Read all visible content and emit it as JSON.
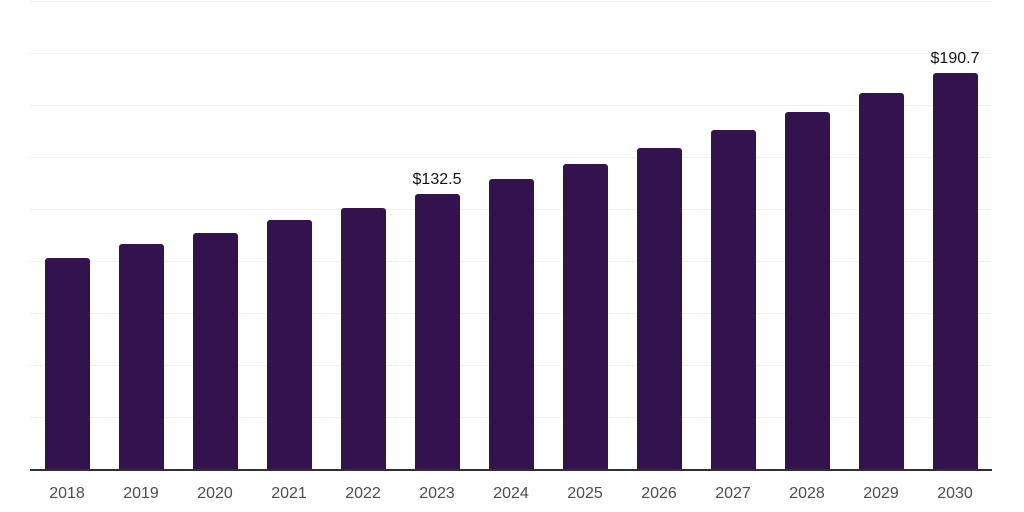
{
  "page": {
    "background_color": "#ffffff"
  },
  "chart_data": {
    "type": "bar",
    "title": "",
    "xlabel": "",
    "ylabel": "",
    "categories": [
      "2018",
      "2019",
      "2020",
      "2021",
      "2022",
      "2023",
      "2024",
      "2025",
      "2026",
      "2027",
      "2028",
      "2029",
      "2030"
    ],
    "values": [
      102.0,
      108.7,
      114.1,
      120.2,
      126.1,
      132.5,
      139.7,
      147.3,
      154.7,
      163.4,
      172.1,
      181.4,
      190.7
    ],
    "data_labels": [
      {
        "category": "2023",
        "text": "$132.5"
      },
      {
        "category": "2030",
        "text": "$190.7"
      }
    ],
    "ylim": [
      0,
      225
    ],
    "gridline_step": 25,
    "grid": true,
    "legend": false,
    "y_axis_labels_visible": false,
    "colors": {
      "bar": "#33124d",
      "gridline": "#f1f2f4",
      "axis": "#303030",
      "tick_label": "#4d4d4d",
      "data_label": "#141414"
    }
  }
}
